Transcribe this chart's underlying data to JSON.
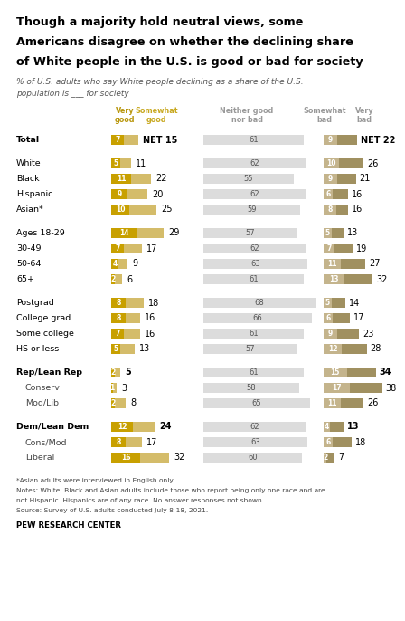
{
  "title": "Though a majority hold neutral views, some\nAmericans disagree on whether the declining share\nof White people in the U.S. is good or bad for society",
  "subtitle": "% of U.S. adults who say White people declining as a share of the U.S.\npopulation is ___ for society",
  "color_very_good": "#C8A000",
  "color_somewhat_good": "#D4BC6A",
  "color_neutral": "#DCDCDC",
  "color_somewhat_bad": "#C4B48C",
  "color_very_bad": "#A09060",
  "rows": [
    {
      "label": "Total",
      "indent": 0,
      "bold": true,
      "vg": 7,
      "sg": 8,
      "nt": 61,
      "sb": 9,
      "vb": 13,
      "ng": 15,
      "nb": 22,
      "is_total": true
    },
    {
      "label": "",
      "indent": 0,
      "bold": false,
      "vg": null,
      "sg": null,
      "nt": null,
      "sb": null,
      "vb": null,
      "ng": null,
      "nb": null,
      "is_total": false
    },
    {
      "label": "White",
      "indent": 0,
      "bold": false,
      "vg": 5,
      "sg": 6,
      "nt": 62,
      "sb": 10,
      "vb": 16,
      "ng": 11,
      "nb": 26,
      "is_total": false
    },
    {
      "label": "Black",
      "indent": 0,
      "bold": false,
      "vg": 11,
      "sg": 11,
      "nt": 55,
      "sb": 9,
      "vb": 12,
      "ng": 22,
      "nb": 21,
      "is_total": false
    },
    {
      "label": "Hispanic",
      "indent": 0,
      "bold": false,
      "vg": 9,
      "sg": 11,
      "nt": 62,
      "sb": 6,
      "vb": 10,
      "ng": 20,
      "nb": 16,
      "is_total": false
    },
    {
      "label": "Asian*",
      "indent": 0,
      "bold": false,
      "vg": 10,
      "sg": 15,
      "nt": 59,
      "sb": 8,
      "vb": 8,
      "ng": 25,
      "nb": 16,
      "is_total": false
    },
    {
      "label": "",
      "indent": 0,
      "bold": false,
      "vg": null,
      "sg": null,
      "nt": null,
      "sb": null,
      "vb": null,
      "ng": null,
      "nb": null,
      "is_total": false
    },
    {
      "label": "Ages 18-29",
      "indent": 0,
      "bold": false,
      "vg": 14,
      "sg": 15,
      "nt": 57,
      "sb": 5,
      "vb": 8,
      "ng": 29,
      "nb": 13,
      "is_total": false
    },
    {
      "label": "30-49",
      "indent": 0,
      "bold": false,
      "vg": 7,
      "sg": 10,
      "nt": 62,
      "sb": 7,
      "vb": 12,
      "ng": 17,
      "nb": 19,
      "is_total": false
    },
    {
      "label": "50-64",
      "indent": 0,
      "bold": false,
      "vg": 4,
      "sg": 5,
      "nt": 63,
      "sb": 11,
      "vb": 16,
      "ng": 9,
      "nb": 27,
      "is_total": false
    },
    {
      "label": "65+",
      "indent": 0,
      "bold": false,
      "vg": 2,
      "sg": 4,
      "nt": 61,
      "sb": 13,
      "vb": 19,
      "ng": 6,
      "nb": 32,
      "is_total": false
    },
    {
      "label": "",
      "indent": 0,
      "bold": false,
      "vg": null,
      "sg": null,
      "nt": null,
      "sb": null,
      "vb": null,
      "ng": null,
      "nb": null,
      "is_total": false
    },
    {
      "label": "Postgrad",
      "indent": 0,
      "bold": false,
      "vg": 8,
      "sg": 10,
      "nt": 68,
      "sb": 5,
      "vb": 9,
      "ng": 18,
      "nb": 14,
      "is_total": false
    },
    {
      "label": "College grad",
      "indent": 0,
      "bold": false,
      "vg": 8,
      "sg": 8,
      "nt": 66,
      "sb": 6,
      "vb": 11,
      "ng": 16,
      "nb": 17,
      "is_total": false
    },
    {
      "label": "Some college",
      "indent": 0,
      "bold": false,
      "vg": 7,
      "sg": 9,
      "nt": 61,
      "sb": 9,
      "vb": 14,
      "ng": 16,
      "nb": 23,
      "is_total": false
    },
    {
      "label": "HS or less",
      "indent": 0,
      "bold": false,
      "vg": 5,
      "sg": 8,
      "nt": 57,
      "sb": 12,
      "vb": 16,
      "ng": 13,
      "nb": 28,
      "is_total": false
    },
    {
      "label": "",
      "indent": 0,
      "bold": false,
      "vg": null,
      "sg": null,
      "nt": null,
      "sb": null,
      "vb": null,
      "ng": null,
      "nb": null,
      "is_total": false
    },
    {
      "label": "Rep/Lean Rep",
      "indent": 0,
      "bold": true,
      "vg": 2,
      "sg": 3,
      "nt": 61,
      "sb": 15,
      "vb": 19,
      "ng": 5,
      "nb": 34,
      "is_total": false
    },
    {
      "label": "Conserv",
      "indent": 1,
      "bold": false,
      "vg": 1,
      "sg": 2,
      "nt": 58,
      "sb": 17,
      "vb": 21,
      "ng": 3,
      "nb": 38,
      "is_total": false
    },
    {
      "label": "Mod/Lib",
      "indent": 1,
      "bold": false,
      "vg": 2,
      "sg": 6,
      "nt": 65,
      "sb": 11,
      "vb": 15,
      "ng": 8,
      "nb": 26,
      "is_total": false
    },
    {
      "label": "",
      "indent": 0,
      "bold": false,
      "vg": null,
      "sg": null,
      "nt": null,
      "sb": null,
      "vb": null,
      "ng": null,
      "nb": null,
      "is_total": false
    },
    {
      "label": "Dem/Lean Dem",
      "indent": 0,
      "bold": true,
      "vg": 12,
      "sg": 12,
      "nt": 62,
      "sb": 4,
      "vb": 9,
      "ng": 24,
      "nb": 13,
      "is_total": false
    },
    {
      "label": "Cons/Mod",
      "indent": 1,
      "bold": false,
      "vg": 8,
      "sg": 9,
      "nt": 63,
      "sb": 6,
      "vb": 12,
      "ng": 17,
      "nb": 18,
      "is_total": false
    },
    {
      "label": "Liberal",
      "indent": 1,
      "bold": false,
      "vg": 16,
      "sg": 16,
      "nt": 60,
      "sb": 2,
      "vb": 5,
      "ng": 32,
      "nb": 7,
      "is_total": false
    }
  ],
  "footnotes": [
    "*Asian adults were interviewed in English only",
    "Notes: White, Black and Asian adults include those who report being only one race and are",
    "not Hispanic. Hispanics are of any race. No answer responses not shown.",
    "Source: Survey of U.S. adults conducted July 8-18, 2021."
  ],
  "source_bold": "PEW RESEARCH CENTER"
}
